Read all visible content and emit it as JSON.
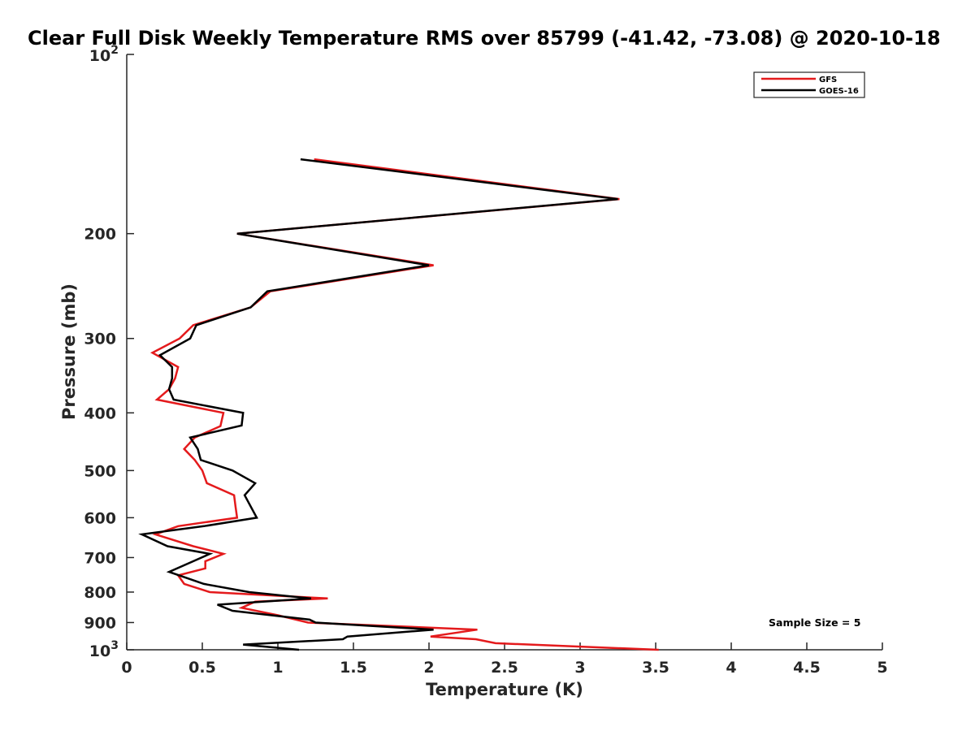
{
  "chart_data": {
    "type": "line",
    "title": "Clear Full Disk Weekly Temperature RMS over 85799 (-41.42, -73.08) @ 2020-10-18",
    "xlabel": "Temperature (K)",
    "ylabel": "Pressure (mb)",
    "xlim": [
      0,
      5
    ],
    "ylim": [
      100,
      1000
    ],
    "y_scale": "log",
    "y_reversed": true,
    "x_ticks": [
      "0",
      "0.5",
      "1",
      "1.5",
      "2",
      "2.5",
      "3",
      "3.5",
      "4",
      "4.5",
      "5"
    ],
    "y_ticks": [
      {
        "value": 100,
        "base": "10",
        "exp": "2"
      },
      {
        "value": 200,
        "label": "200"
      },
      {
        "value": 300,
        "label": "300"
      },
      {
        "value": 400,
        "label": "400"
      },
      {
        "value": 500,
        "label": "500"
      },
      {
        "value": 600,
        "label": "600"
      },
      {
        "value": 700,
        "label": "700"
      },
      {
        "value": 800,
        "label": "800"
      },
      {
        "value": 900,
        "label": "900"
      },
      {
        "value": 1000,
        "base": "10",
        "exp": "3"
      }
    ],
    "legend_position": "top-right",
    "grid": false,
    "annotation": "Sample Size = 5",
    "series": [
      {
        "name": "GFS",
        "color": "#e41a1c",
        "points": [
          [
            1.24,
            150
          ],
          [
            3.26,
            175
          ],
          [
            0.73,
            200
          ],
          [
            2.03,
            226
          ],
          [
            0.95,
            250
          ],
          [
            0.82,
            266
          ],
          [
            0.44,
            285
          ],
          [
            0.35,
            300
          ],
          [
            0.17,
            317
          ],
          [
            0.34,
            335
          ],
          [
            0.32,
            350
          ],
          [
            0.28,
            365
          ],
          [
            0.2,
            380
          ],
          [
            0.64,
            400
          ],
          [
            0.62,
            421
          ],
          [
            0.45,
            440
          ],
          [
            0.38,
            460
          ],
          [
            0.45,
            480
          ],
          [
            0.5,
            500
          ],
          [
            0.53,
            525
          ],
          [
            0.71,
            550
          ],
          [
            0.72,
            575
          ],
          [
            0.73,
            600
          ],
          [
            0.34,
            620
          ],
          [
            0.19,
            640
          ],
          [
            0.44,
            670
          ],
          [
            0.64,
            690
          ],
          [
            0.52,
            710
          ],
          [
            0.52,
            730
          ],
          [
            0.34,
            750
          ],
          [
            0.38,
            775
          ],
          [
            0.55,
            800
          ],
          [
            1.33,
            820
          ],
          [
            0.85,
            830
          ],
          [
            0.76,
            850
          ],
          [
            1.0,
            875
          ],
          [
            1.2,
            900
          ],
          [
            2.32,
            925
          ],
          [
            2.01,
            950
          ],
          [
            2.31,
            960
          ],
          [
            2.44,
            975
          ],
          [
            3.52,
            1000
          ]
        ]
      },
      {
        "name": "GOES-16",
        "color": "#000000",
        "points": [
          [
            1.15,
            150
          ],
          [
            3.25,
            175
          ],
          [
            0.73,
            200
          ],
          [
            2.0,
            226
          ],
          [
            0.93,
            250
          ],
          [
            0.82,
            266
          ],
          [
            0.46,
            285
          ],
          [
            0.42,
            300
          ],
          [
            0.22,
            320
          ],
          [
            0.3,
            335
          ],
          [
            0.3,
            350
          ],
          [
            0.28,
            365
          ],
          [
            0.31,
            380
          ],
          [
            0.77,
            400
          ],
          [
            0.76,
            420
          ],
          [
            0.42,
            440
          ],
          [
            0.47,
            460
          ],
          [
            0.49,
            480
          ],
          [
            0.7,
            500
          ],
          [
            0.85,
            525
          ],
          [
            0.78,
            550
          ],
          [
            0.86,
            600
          ],
          [
            0.51,
            620
          ],
          [
            0.1,
            640
          ],
          [
            0.27,
            670
          ],
          [
            0.55,
            690
          ],
          [
            0.44,
            710
          ],
          [
            0.28,
            740
          ],
          [
            0.51,
            775
          ],
          [
            0.81,
            800
          ],
          [
            1.22,
            820
          ],
          [
            0.6,
            840
          ],
          [
            0.7,
            860
          ],
          [
            1.21,
            890
          ],
          [
            1.25,
            900
          ],
          [
            2.03,
            925
          ],
          [
            1.46,
            950
          ],
          [
            1.43,
            960
          ],
          [
            0.77,
            980
          ],
          [
            1.14,
            1000
          ]
        ]
      }
    ]
  }
}
